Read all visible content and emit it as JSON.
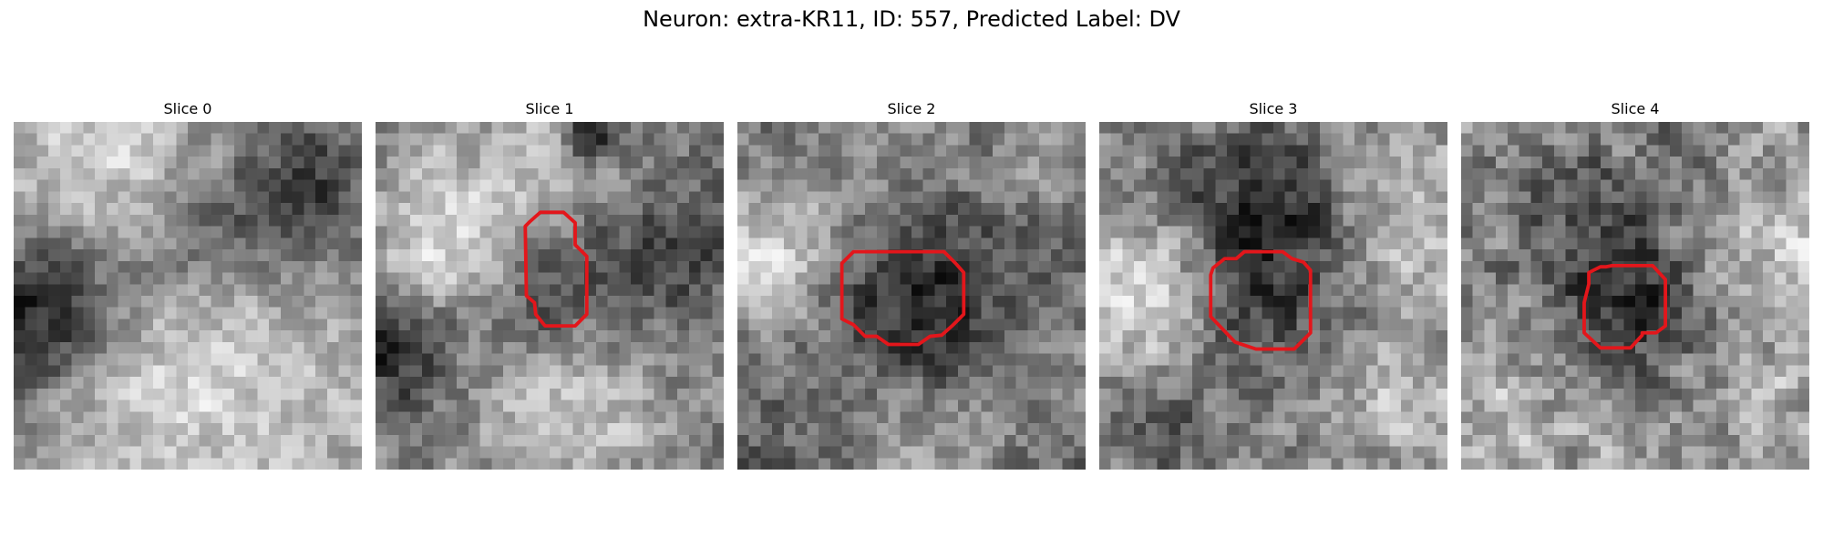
{
  "figure": {
    "title": "Neuron: extra-KR11, ID: 557, Predicted Label: DV",
    "outline_color": "#e3161b",
    "colormap": "gray",
    "panels": [
      {
        "title": "Slice 0",
        "has_outline": false,
        "texture": {
          "seed": 11,
          "blobs": [
            {
              "cx": 1.5,
              "cy": 17,
              "r": 5,
              "s": -1.3
            },
            {
              "cx": 25.5,
              "cy": 5,
              "r": 5,
              "s": -1.0
            },
            {
              "cx": 16,
              "cy": 10,
              "r": 4,
              "s": -0.5
            },
            {
              "cx": 8,
              "cy": 3,
              "r": 5,
              "s": 0.5
            },
            {
              "cx": 18,
              "cy": 22,
              "r": 6,
              "s": 0.5
            },
            {
              "cx": 9,
              "cy": 24,
              "r": 4,
              "s": 0.3
            }
          ]
        }
      },
      {
        "title": "Slice 1",
        "has_outline": true,
        "texture": {
          "seed": 23,
          "blobs": [
            {
              "cx": 15.5,
              "cy": 14.5,
              "r": 5,
              "s": -0.7
            },
            {
              "cx": 6,
              "cy": 10,
              "r": 5,
              "s": 0.9
            },
            {
              "cx": 16,
              "cy": 4,
              "r": 5,
              "s": 0.6
            },
            {
              "cx": 16,
              "cy": 24,
              "r": 6,
              "s": 0.7
            },
            {
              "cx": 26,
              "cy": 11,
              "r": 4,
              "s": -0.6
            },
            {
              "cx": 2,
              "cy": 20,
              "r": 4,
              "s": -0.7
            },
            {
              "cx": 19,
              "cy": 1,
              "r": 2,
              "s": -1.2
            }
          ]
        }
      },
      {
        "title": "Slice 2",
        "has_outline": true,
        "texture": {
          "seed": 37,
          "blobs": [
            {
              "cx": 15,
              "cy": 16,
              "r": 6,
              "s": -0.8
            },
            {
              "cx": 3,
              "cy": 12,
              "r": 5,
              "s": 1.0
            },
            {
              "cx": 14,
              "cy": 4,
              "r": 6,
              "s": 0.4
            },
            {
              "cx": 16,
              "cy": 26,
              "r": 6,
              "s": 0.6
            },
            {
              "cx": 27,
              "cy": 3,
              "r": 3,
              "s": 0.6
            },
            {
              "cx": 27,
              "cy": 21,
              "r": 4,
              "s": 0.3
            }
          ]
        }
      },
      {
        "title": "Slice 3",
        "has_outline": true,
        "texture": {
          "seed": 51,
          "blobs": [
            {
              "cx": 14,
              "cy": 15,
              "r": 6,
              "s": -0.6
            },
            {
              "cx": 14,
              "cy": 7,
              "r": 5,
              "s": -0.7
            },
            {
              "cx": 4,
              "cy": 15,
              "r": 5,
              "s": 0.8
            },
            {
              "cx": 25,
              "cy": 9,
              "r": 5,
              "s": 0.5
            },
            {
              "cx": 26,
              "cy": 23,
              "r": 5,
              "s": 0.4
            },
            {
              "cx": 4,
              "cy": 26,
              "r": 4,
              "s": -0.4
            }
          ]
        }
      },
      {
        "title": "Slice 4",
        "has_outline": true,
        "texture": {
          "seed": 67,
          "blobs": [
            {
              "cx": 13,
              "cy": 11,
              "r": 7,
              "s": -0.6
            },
            {
              "cx": 16,
              "cy": 18,
              "r": 4,
              "s": -0.3
            },
            {
              "cx": 4,
              "cy": 25,
              "r": 5,
              "s": 0.3
            },
            {
              "cx": 26,
              "cy": 10,
              "r": 4,
              "s": 0.4
            },
            {
              "cx": 26,
              "cy": 23,
              "r": 5,
              "s": 0.2
            }
          ]
        }
      }
    ]
  }
}
